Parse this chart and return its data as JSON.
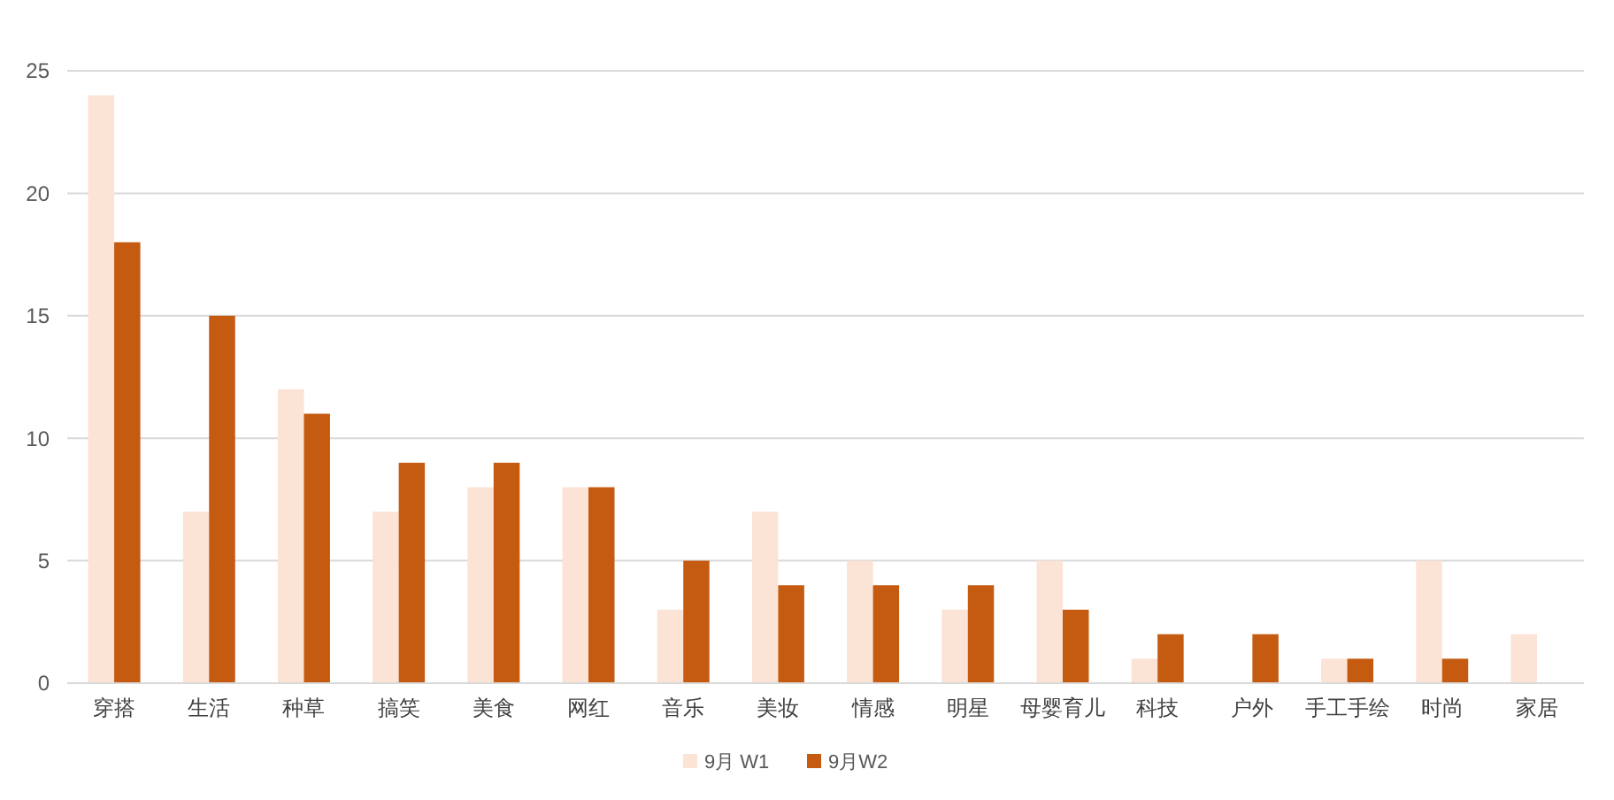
{
  "chart_data": {
    "type": "bar",
    "categories": [
      "穿搭",
      "生活",
      "种草",
      "搞笑",
      "美食",
      "网红",
      "音乐",
      "美妆",
      "情感",
      "明星",
      "母婴育儿",
      "科技",
      "户外",
      "手工手绘",
      "时尚",
      "家居"
    ],
    "series": [
      {
        "name": "9月 W1",
        "color": "#fbe3d6",
        "values": [
          24,
          7,
          12,
          7,
          8,
          8,
          3,
          7,
          5,
          3,
          5,
          1,
          0,
          1,
          5,
          2
        ]
      },
      {
        "name": "9月W2",
        "color": "#c55a11",
        "values": [
          18,
          15,
          11,
          9,
          9,
          8,
          5,
          4,
          4,
          4,
          3,
          2,
          2,
          1,
          1,
          0
        ]
      }
    ],
    "ylim": [
      0,
      25
    ],
    "yticks": [
      0,
      5,
      10,
      15,
      20,
      25
    ],
    "grid": "y",
    "legend": "bottom"
  }
}
